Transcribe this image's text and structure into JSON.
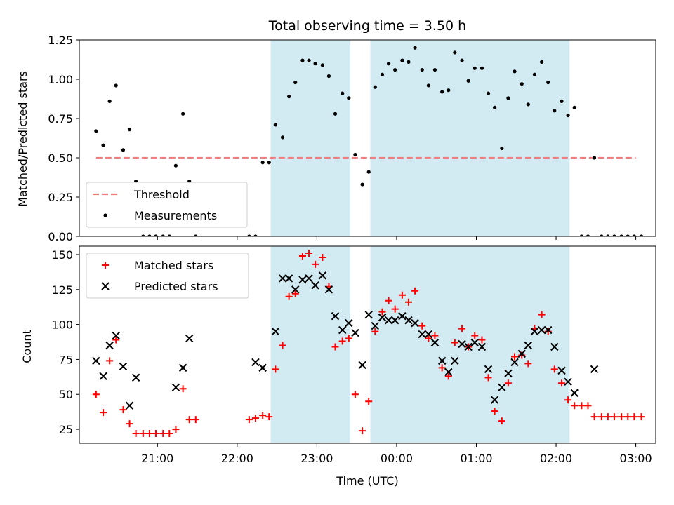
{
  "chart_data": {
    "type": "scatter",
    "title": "Total observing time = 3.50 h",
    "xlabel": "Time (UTC)",
    "x_tick_labels": [
      "21:00",
      "22:00",
      "23:00",
      "00:00",
      "01:00",
      "02:00",
      "03:00"
    ],
    "x_tick_hours": [
      21,
      22,
      23,
      24,
      25,
      26,
      27
    ],
    "xlim_hours": [
      20.02,
      27.25
    ],
    "shaded_intervals_hours": [
      [
        22.42,
        23.42
      ],
      [
        23.67,
        26.17
      ]
    ],
    "shade_color": "#add8e6",
    "panels": [
      {
        "ylabel": "Matched/Predicted stars",
        "ylim": [
          0,
          1.25
        ],
        "y_tick_labels": [
          "0.00",
          "0.25",
          "0.50",
          "0.75",
          "1.00",
          "1.25"
        ],
        "legend": {
          "placement": "lower left",
          "entries": [
            "Threshold",
            "Measurements"
          ]
        },
        "threshold": {
          "name": "Threshold",
          "y": 0.5,
          "x_range_hours": [
            20.23,
            27.0
          ],
          "color": "#f08080",
          "style": "dashed"
        },
        "series": [
          {
            "name": "Measurements",
            "marker": "dot",
            "color": "#000000",
            "points": [
              [
                20.23,
                0.67
              ],
              [
                20.32,
                0.58
              ],
              [
                20.4,
                0.86
              ],
              [
                20.48,
                0.96
              ],
              [
                20.57,
                0.55
              ],
              [
                20.65,
                0.68
              ],
              [
                20.73,
                0.35
              ],
              [
                20.82,
                0.0
              ],
              [
                20.9,
                0.0
              ],
              [
                20.98,
                0.0
              ],
              [
                21.07,
                0.0
              ],
              [
                21.15,
                0.0
              ],
              [
                21.23,
                0.45
              ],
              [
                21.32,
                0.78
              ],
              [
                21.4,
                0.35
              ],
              [
                21.48,
                0.0
              ],
              [
                22.15,
                0.0
              ],
              [
                22.23,
                0.0
              ],
              [
                22.32,
                0.47
              ],
              [
                22.4,
                0.47
              ],
              [
                22.48,
                0.71
              ],
              [
                22.57,
                0.63
              ],
              [
                22.65,
                0.89
              ],
              [
                22.73,
                0.98
              ],
              [
                22.82,
                1.12
              ],
              [
                22.9,
                1.12
              ],
              [
                22.98,
                1.1
              ],
              [
                23.07,
                1.09
              ],
              [
                23.15,
                1.02
              ],
              [
                23.23,
                0.78
              ],
              [
                23.32,
                0.91
              ],
              [
                23.4,
                0.88
              ],
              [
                23.48,
                0.52
              ],
              [
                23.57,
                0.33
              ],
              [
                23.65,
                0.41
              ],
              [
                23.73,
                0.95
              ],
              [
                23.82,
                1.03
              ],
              [
                23.9,
                1.1
              ],
              [
                23.98,
                1.06
              ],
              [
                24.07,
                1.12
              ],
              [
                24.15,
                1.11
              ],
              [
                24.23,
                1.2
              ],
              [
                24.32,
                1.06
              ],
              [
                24.4,
                0.96
              ],
              [
                24.48,
                1.06
              ],
              [
                24.57,
                0.92
              ],
              [
                24.65,
                0.93
              ],
              [
                24.73,
                1.17
              ],
              [
                24.82,
                1.12
              ],
              [
                24.9,
                0.99
              ],
              [
                24.98,
                1.07
              ],
              [
                25.07,
                1.07
              ],
              [
                25.15,
                0.91
              ],
              [
                25.23,
                0.82
              ],
              [
                25.32,
                0.56
              ],
              [
                25.4,
                0.88
              ],
              [
                25.48,
                1.05
              ],
              [
                25.57,
                0.97
              ],
              [
                25.65,
                0.84
              ],
              [
                25.73,
                1.03
              ],
              [
                25.82,
                1.11
              ],
              [
                25.9,
                0.98
              ],
              [
                25.98,
                0.8
              ],
              [
                26.07,
                0.86
              ],
              [
                26.15,
                0.77
              ],
              [
                26.23,
                0.82
              ],
              [
                26.32,
                0.0
              ],
              [
                26.4,
                0.0
              ],
              [
                26.48,
                0.5
              ],
              [
                26.57,
                0.0
              ],
              [
                26.65,
                0.0
              ],
              [
                26.73,
                0.0
              ],
              [
                26.82,
                0.0
              ],
              [
                26.9,
                0.0
              ],
              [
                26.98,
                0.0
              ],
              [
                27.07,
                0.0
              ]
            ]
          }
        ]
      },
      {
        "ylabel": "Count",
        "ylim": [
          15,
          156
        ],
        "y_tick_labels": [
          "25",
          "50",
          "75",
          "100",
          "125",
          "150"
        ],
        "y_tick_values": [
          25,
          50,
          75,
          100,
          125,
          150
        ],
        "legend": {
          "placement": "upper left",
          "entries": [
            "Matched stars",
            "Predicted stars"
          ]
        },
        "series": [
          {
            "name": "Matched stars",
            "marker": "plus",
            "color": "#ff0000",
            "points": [
              [
                20.23,
                50
              ],
              [
                20.32,
                37
              ],
              [
                20.4,
                74
              ],
              [
                20.48,
                89
              ],
              [
                20.57,
                39
              ],
              [
                20.65,
                29
              ],
              [
                20.73,
                22
              ],
              [
                20.82,
                22
              ],
              [
                20.9,
                22
              ],
              [
                20.98,
                22
              ],
              [
                21.07,
                22
              ],
              [
                21.15,
                22
              ],
              [
                21.23,
                25
              ],
              [
                21.32,
                54
              ],
              [
                21.4,
                32
              ],
              [
                21.48,
                32
              ],
              [
                22.15,
                32
              ],
              [
                22.23,
                33
              ],
              [
                22.32,
                35
              ],
              [
                22.4,
                34
              ],
              [
                22.48,
                68
              ],
              [
                22.57,
                85
              ],
              [
                22.65,
                120
              ],
              [
                22.73,
                122
              ],
              [
                22.82,
                149
              ],
              [
                22.9,
                151
              ],
              [
                22.98,
                143
              ],
              [
                23.07,
                148
              ],
              [
                23.15,
                127
              ],
              [
                23.23,
                84
              ],
              [
                23.32,
                88
              ],
              [
                23.4,
                90
              ],
              [
                23.48,
                50
              ],
              [
                23.57,
                24
              ],
              [
                23.65,
                45
              ],
              [
                23.73,
                95
              ],
              [
                23.82,
                109
              ],
              [
                23.9,
                117
              ],
              [
                23.98,
                111
              ],
              [
                24.07,
                121
              ],
              [
                24.15,
                116
              ],
              [
                24.23,
                124
              ],
              [
                24.32,
                99
              ],
              [
                24.4,
                90
              ],
              [
                24.48,
                92
              ],
              [
                24.57,
                69
              ],
              [
                24.65,
                63
              ],
              [
                24.73,
                87
              ],
              [
                24.82,
                97
              ],
              [
                24.9,
                84
              ],
              [
                24.98,
                92
              ],
              [
                25.07,
                89
              ],
              [
                25.15,
                62
              ],
              [
                25.23,
                38
              ],
              [
                25.32,
                31
              ],
              [
                25.4,
                58
              ],
              [
                25.48,
                77
              ],
              [
                25.57,
                78
              ],
              [
                25.65,
                72
              ],
              [
                25.73,
                97
              ],
              [
                25.82,
                107
              ],
              [
                25.9,
                95
              ],
              [
                25.98,
                68
              ],
              [
                26.07,
                58
              ],
              [
                26.15,
                46
              ],
              [
                26.23,
                42
              ],
              [
                26.32,
                42
              ],
              [
                26.4,
                42
              ],
              [
                26.48,
                34
              ],
              [
                26.57,
                34
              ],
              [
                26.65,
                34
              ],
              [
                26.73,
                34
              ],
              [
                26.82,
                34
              ],
              [
                26.9,
                34
              ],
              [
                26.98,
                34
              ],
              [
                27.07,
                34
              ]
            ]
          },
          {
            "name": "Predicted stars",
            "marker": "x",
            "color": "#000000",
            "points": [
              [
                20.23,
                74
              ],
              [
                20.32,
                63
              ],
              [
                20.4,
                85
              ],
              [
                20.48,
                92
              ],
              [
                20.57,
                70
              ],
              [
                20.65,
                42
              ],
              [
                20.73,
                62
              ],
              [
                21.23,
                55
              ],
              [
                21.32,
                69
              ],
              [
                21.4,
                90
              ],
              [
                22.23,
                73
              ],
              [
                22.32,
                69
              ],
              [
                22.48,
                95
              ],
              [
                22.57,
                133
              ],
              [
                22.65,
                133
              ],
              [
                22.73,
                125
              ],
              [
                22.82,
                132
              ],
              [
                22.9,
                133
              ],
              [
                22.98,
                128
              ],
              [
                23.07,
                135
              ],
              [
                23.15,
                125
              ],
              [
                23.23,
                106
              ],
              [
                23.32,
                96
              ],
              [
                23.4,
                101
              ],
              [
                23.48,
                94
              ],
              [
                23.57,
                71
              ],
              [
                23.65,
                107
              ],
              [
                23.73,
                99
              ],
              [
                23.82,
                105
              ],
              [
                23.9,
                103
              ],
              [
                23.98,
                103
              ],
              [
                24.07,
                106
              ],
              [
                24.15,
                103
              ],
              [
                24.23,
                101
              ],
              [
                24.32,
                93
              ],
              [
                24.4,
                93
              ],
              [
                24.48,
                87
              ],
              [
                24.57,
                74
              ],
              [
                24.65,
                66
              ],
              [
                24.73,
                74
              ],
              [
                24.82,
                86
              ],
              [
                24.9,
                84
              ],
              [
                24.98,
                87
              ],
              [
                25.07,
                84
              ],
              [
                25.15,
                68
              ],
              [
                25.23,
                46
              ],
              [
                25.32,
                55
              ],
              [
                25.4,
                65
              ],
              [
                25.48,
                73
              ],
              [
                25.57,
                79
              ],
              [
                25.65,
                85
              ],
              [
                25.73,
                95
              ],
              [
                25.82,
                96
              ],
              [
                25.9,
                96
              ],
              [
                25.98,
                84
              ],
              [
                26.07,
                67
              ],
              [
                26.15,
                59
              ],
              [
                26.23,
                51
              ],
              [
                26.48,
                68
              ]
            ]
          }
        ]
      }
    ]
  }
}
